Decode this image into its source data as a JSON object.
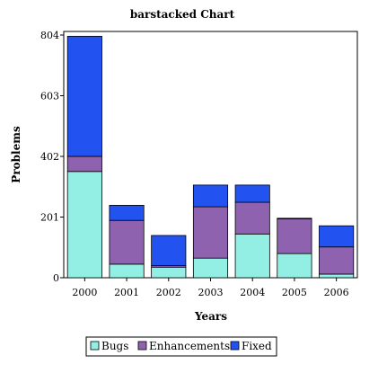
{
  "chart_data": {
    "type": "bar",
    "stacked": true,
    "title": "barstacked Chart",
    "xlabel": "Years",
    "ylabel": "Problems",
    "categories": [
      "2000",
      "2001",
      "2002",
      "2003",
      "2004",
      "2005",
      "2006"
    ],
    "ylim": [
      0,
      804
    ],
    "yticks": [
      0,
      201,
      402,
      603,
      804
    ],
    "series": [
      {
        "name": "Bugs",
        "color": "#93efe3",
        "values": [
          352,
          45,
          35,
          65,
          145,
          80,
          12
        ]
      },
      {
        "name": "Enhancements",
        "color": "#8f62b0",
        "values": [
          50,
          145,
          5,
          170,
          105,
          115,
          90
        ]
      },
      {
        "name": "Fixed",
        "color": "#2253f0",
        "values": [
          398,
          50,
          100,
          72,
          57,
          2,
          70
        ]
      }
    ],
    "legend_position": "bottom",
    "grid": false
  }
}
